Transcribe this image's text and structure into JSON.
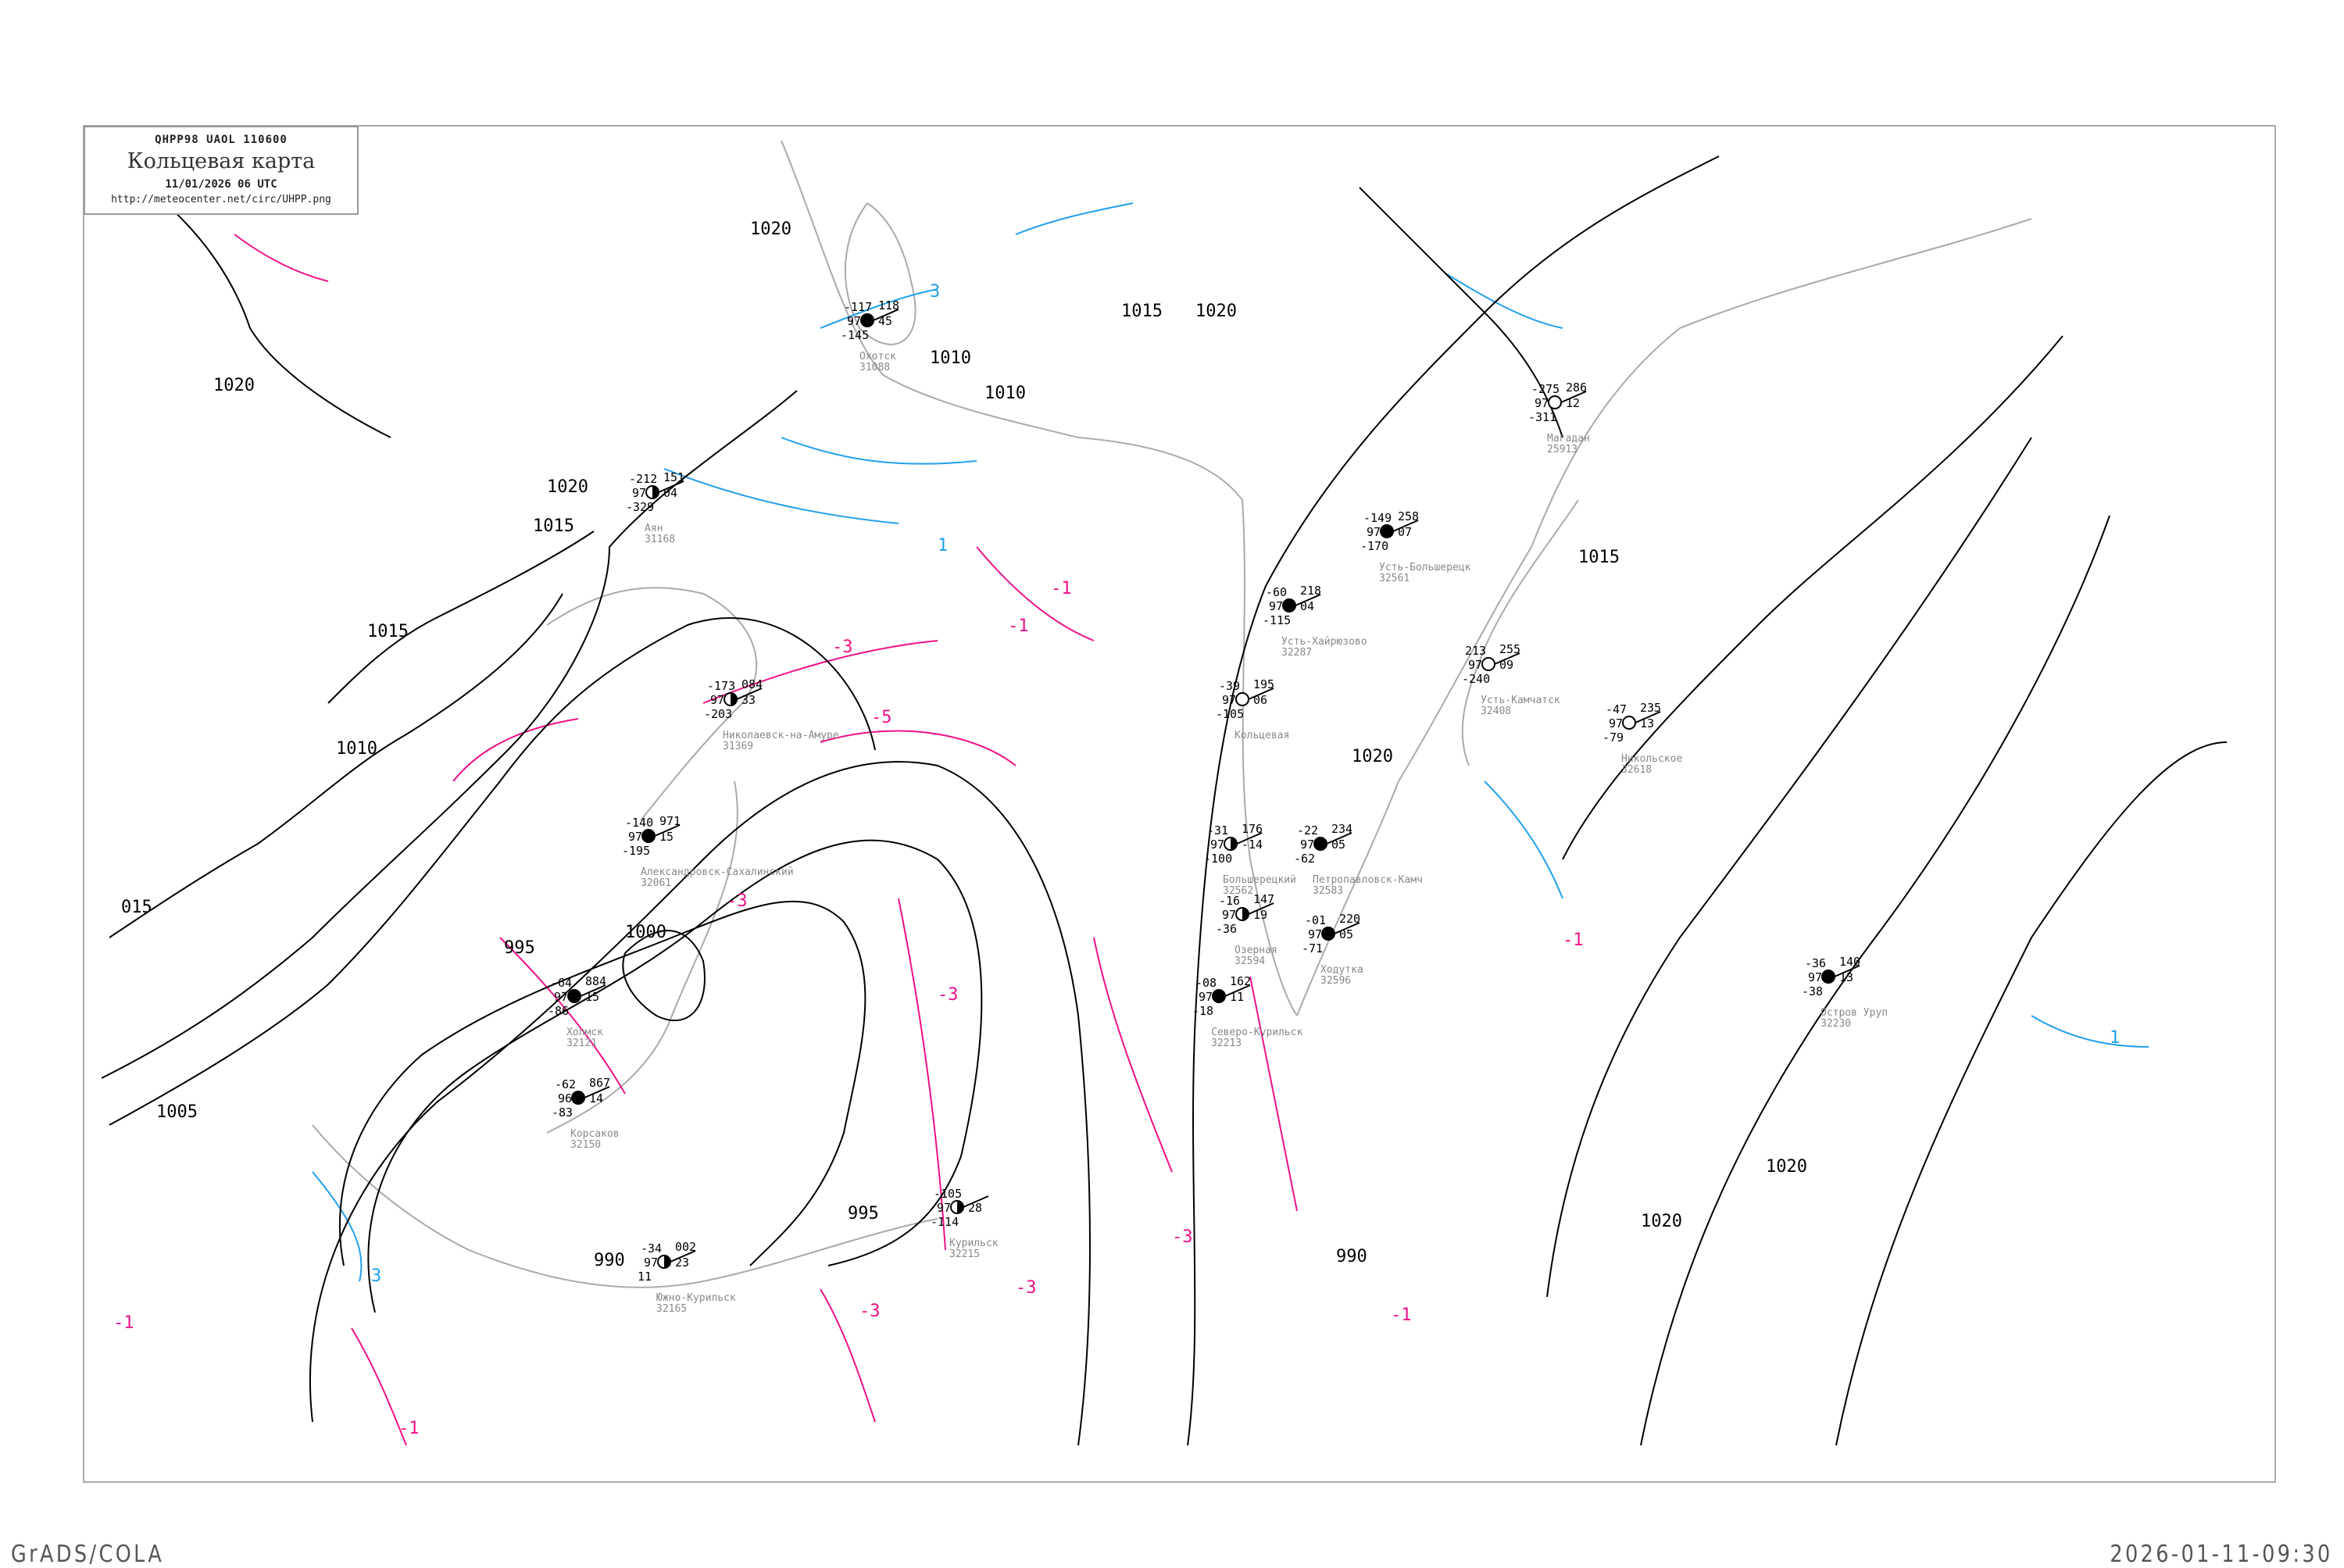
{
  "header": {
    "code_line": "QHPP98   UAOL   110600",
    "title": "Кольцевая карта",
    "datetime": "11/01/2026 06 UTC",
    "url": "http://meteocenter.net/circ/UHPP.png"
  },
  "footer": {
    "left": "GrADS/COLA",
    "right": "2026-01-11-09:30"
  },
  "colors": {
    "isobar": "#000000",
    "isotherm_negative": "#ee1188",
    "isotherm_positive": "#22a0ee",
    "coastline": "#aaaaaa",
    "station_name": "#888888",
    "precip_marker": "#3399ff"
  },
  "isobar_labels": [
    "1020",
    "1020",
    "1015",
    "1015",
    "1010",
    "1020",
    "1015",
    "1020",
    "1015",
    "1010",
    "1005",
    "1000",
    "995",
    "990",
    "995",
    "990",
    "1020",
    "1020",
    "1020",
    "015",
    "1010"
  ],
  "isotherm_labels": [
    "-1",
    "-3",
    "-5",
    "-3",
    "-3",
    "-3",
    "-3",
    "-1",
    "-1",
    "-3",
    "3",
    "3",
    "1",
    "1",
    "-1",
    "-1",
    "-1"
  ],
  "stations": [
    {
      "name": "Петропавловск-Камч",
      "id": "32583",
      "temp": "-22",
      "vis": "97",
      "dew": "-62",
      "pres": "234",
      "tend": "05",
      "sym": "full"
    },
    {
      "name": "Большерецкий",
      "id": "32562",
      "temp": "-31",
      "vis": "97",
      "dew": "-100",
      "pres": "176",
      "tend": "-14",
      "sym": "half"
    },
    {
      "name": "Ходутка",
      "id": "32596",
      "temp": "-01",
      "vis": "97",
      "dew": "-71",
      "pres": "220",
      "tend": "05",
      "sym": "full"
    },
    {
      "name": "Озерная",
      "id": "32594",
      "temp": "-16",
      "vis": "97",
      "dew": "-36",
      "pres": "147",
      "tend": "19",
      "sym": "half"
    },
    {
      "name": "Усть-Камчатск",
      "id": "32408",
      "temp": "213",
      "vis": "97",
      "dew": "-240",
      "pres": "255",
      "tend": "09",
      "sym": "empty"
    },
    {
      "name": "Усть-Хайрюзово",
      "id": "32287",
      "temp": "-60",
      "vis": "97",
      "dew": "-115",
      "pres": "218",
      "tend": "04",
      "sym": "full"
    },
    {
      "name": "Кольцевая",
      "id": "",
      "temp": "-39",
      "vis": "97",
      "dew": "-105",
      "pres": "195",
      "tend": "06",
      "sym": "empty"
    },
    {
      "name": "Южно-Курильск",
      "id": "32165",
      "temp": "-34",
      "vis": "97",
      "dew": "11",
      "pres": "002",
      "tend": "23",
      "sym": "half"
    },
    {
      "name": "Курильск",
      "id": "32215",
      "temp": "-105",
      "vis": "97",
      "dew": "-114",
      "pres": "",
      "tend": "28",
      "sym": "half"
    },
    {
      "name": "Северо-Курильск",
      "id": "32213",
      "temp": "-08",
      "vis": "97",
      "dew": "-18",
      "pres": "162",
      "tend": "11",
      "sym": "full"
    },
    {
      "name": "Никольское",
      "id": "32618",
      "temp": "-47",
      "vis": "97",
      "dew": "-79",
      "pres": "235",
      "tend": "13",
      "sym": "empty"
    },
    {
      "name": "Магадан",
      "id": "25913",
      "temp": "-275",
      "vis": "97",
      "dew": "-311",
      "pres": "286",
      "tend": "12",
      "sym": "empty"
    },
    {
      "name": "Охотск",
      "id": "31088",
      "temp": "-117",
      "vis": "97",
      "dew": "-145",
      "pres": "118",
      "tend": "45",
      "sym": "full"
    },
    {
      "name": "Аян",
      "id": "31168",
      "temp": "-212",
      "vis": "97",
      "dew": "-329",
      "pres": "151",
      "tend": "04",
      "sym": "half"
    },
    {
      "name": "Усть-Большерецк",
      "id": "32561",
      "temp": "-149",
      "vis": "97",
      "dew": "-170",
      "pres": "258",
      "tend": "07",
      "sym": "full"
    },
    {
      "name": "Остров Уруп",
      "id": "32230",
      "temp": "-36",
      "vis": "97",
      "dew": "-38",
      "pres": "140",
      "tend": "13",
      "sym": "full"
    },
    {
      "name": "Александровск-Сахалинский",
      "id": "32061",
      "temp": "-140",
      "vis": "97",
      "dew": "-195",
      "pres": "971",
      "tend": "15",
      "sym": "full"
    },
    {
      "name": "Холмск",
      "id": "32121",
      "temp": "-64",
      "vis": "97",
      "dew": "-86",
      "pres": "884",
      "tend": "15",
      "sym": "full"
    },
    {
      "name": "Корсаков",
      "id": "32150",
      "temp": "-62",
      "vis": "96",
      "dew": "-83",
      "pres": "867",
      "tend": "14",
      "sym": "full"
    },
    {
      "name": "Николаевск-на-Амуре",
      "id": "31369",
      "temp": "-173",
      "vis": "97",
      "dew": "-203",
      "pres": "084",
      "tend": "33",
      "sym": "half"
    }
  ]
}
